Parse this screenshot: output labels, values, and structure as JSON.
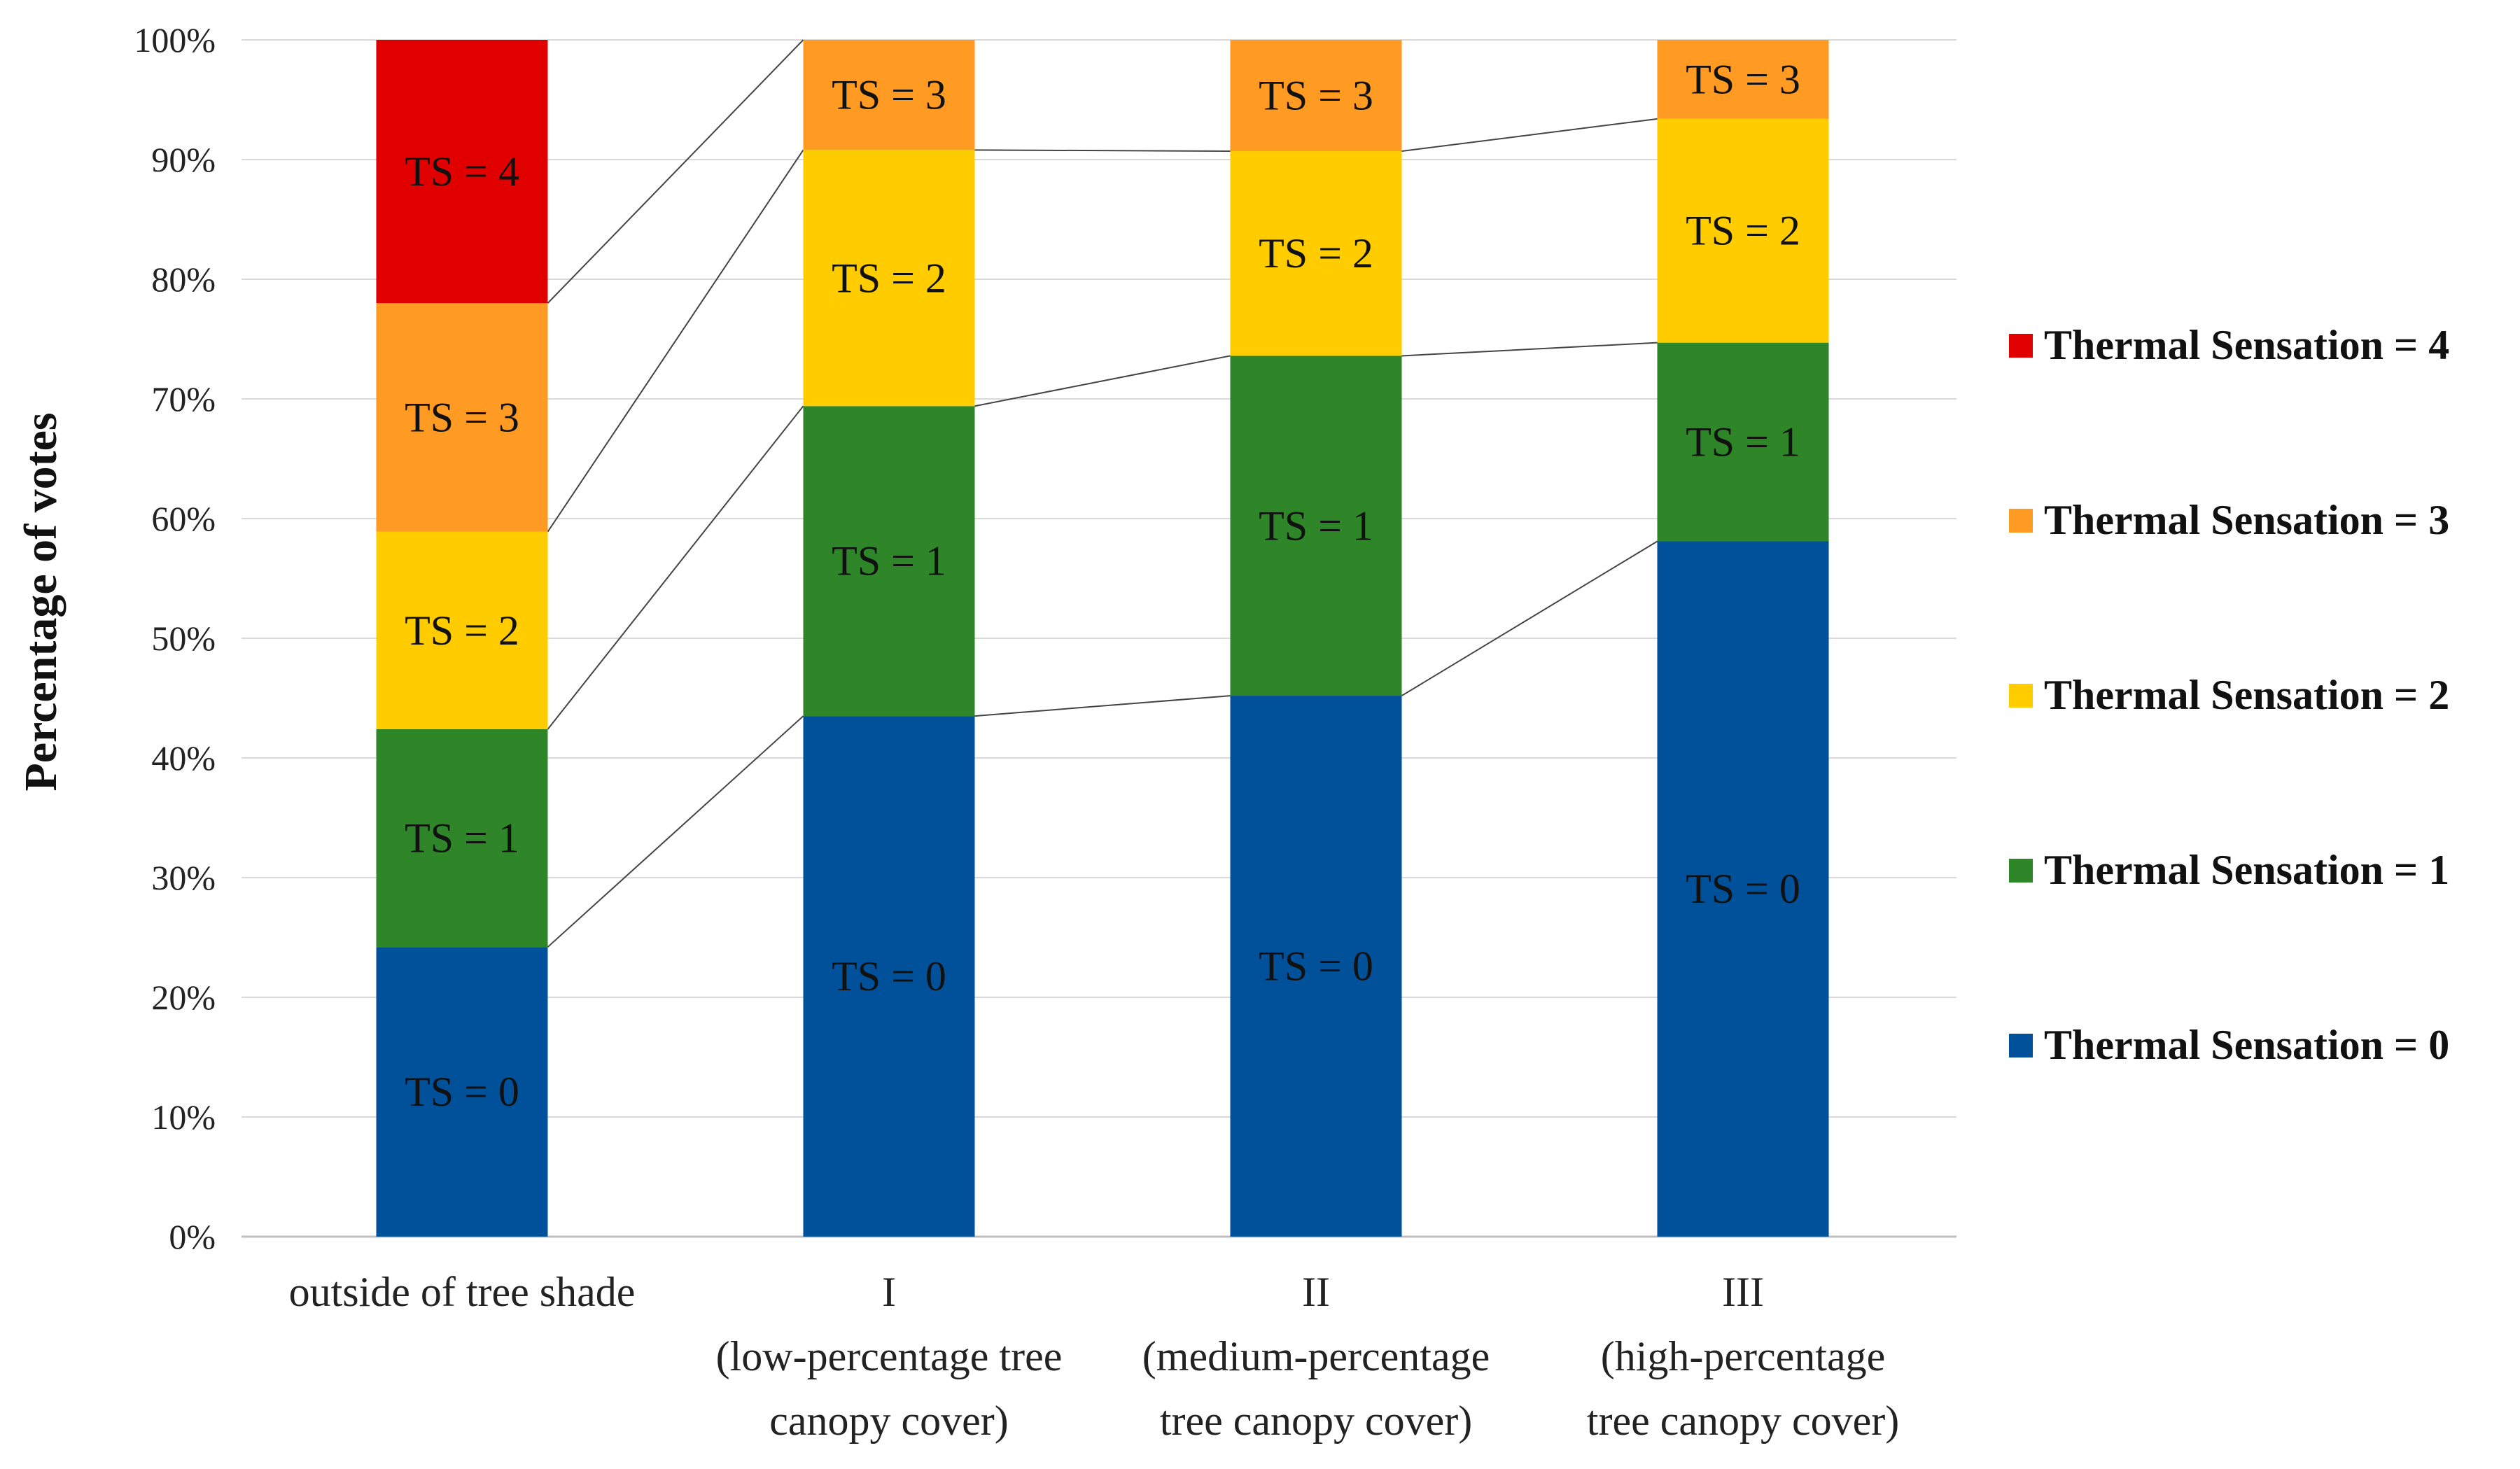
{
  "chart_data": {
    "type": "bar",
    "stacked": true,
    "percent": true,
    "title": "",
    "xlabel": "",
    "ylabel": "Percentage of votes",
    "ylim": [
      0,
      100
    ],
    "yticks": [
      "0%",
      "10%",
      "20%",
      "30%",
      "40%",
      "50%",
      "60%",
      "70%",
      "80%",
      "90%",
      "100%"
    ],
    "grid": true,
    "legend_position": "right",
    "categories": [
      [
        "outside of tree shade"
      ],
      [
        "I",
        "(low-percentage tree",
        "canopy cover)"
      ],
      [
        "II",
        "(medium-percentage",
        "tree canopy cover)"
      ],
      [
        "III",
        "(high-percentage",
        "tree canopy cover)"
      ]
    ],
    "series": [
      {
        "name": "Thermal Sensation = 0",
        "label": "TS = 0",
        "color": "#00519A",
        "values": [
          24.2,
          43.5,
          45.2,
          58.1
        ]
      },
      {
        "name": "Thermal Sensation = 1",
        "label": "TS = 1",
        "color": "#2E8629",
        "values": [
          18.2,
          25.9,
          28.4,
          16.6
        ]
      },
      {
        "name": "Thermal Sensation = 2",
        "label": "TS = 2",
        "color": "#FFCC00",
        "values": [
          16.5,
          21.4,
          17.1,
          18.7
        ]
      },
      {
        "name": "Thermal Sensation = 3",
        "label": "TS = 3",
        "color": "#FF9A22",
        "values": [
          19.1,
          9.2,
          9.3,
          6.6
        ]
      },
      {
        "name": "Thermal Sensation = 4",
        "label": "TS = 4",
        "color": "#E00000",
        "values": [
          22.0,
          0,
          0,
          0
        ]
      }
    ]
  }
}
